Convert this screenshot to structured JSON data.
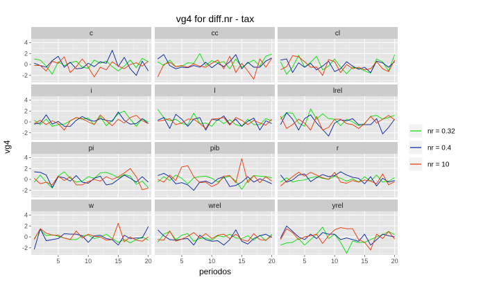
{
  "chart_data": {
    "type": "line",
    "title": "vg4 for diff.nr - tax",
    "xlabel": "periodos",
    "ylabel": "vg4",
    "xlim": [
      0.5,
      20.5
    ],
    "ylim": [
      -3.3,
      4.7
    ],
    "xticks": [
      5,
      10,
      15,
      20
    ],
    "yticks": [
      -2,
      0,
      2,
      4
    ],
    "series_names": [
      "nr = 0.32",
      "nr = 0.4",
      "nr = 10"
    ],
    "colors": {
      "nr = 0.32": "#00e000",
      "nr = 0.4": "#001f9f",
      "nr = 10": "#ee3300"
    },
    "x": [
      1,
      2,
      3,
      4,
      5,
      6,
      7,
      8,
      9,
      10,
      11,
      12,
      13,
      14,
      15,
      16,
      17,
      18,
      19,
      20
    ],
    "panels": [
      {
        "name": "c",
        "series": [
          {
            "name": "nr = 0.32",
            "values": [
              1.0,
              0.8,
              -0.3,
              -1.8,
              0.5,
              -0.2,
              0.3,
              0.6,
              -0.5,
              -0.7,
              0.8,
              0.2,
              0.6,
              -0.4,
              -1.2,
              -0.3,
              0.8,
              -0.6,
              1.1,
              0.5
            ]
          },
          {
            "name": "nr = 0.4",
            "values": [
              0.2,
              -0.2,
              -0.5,
              0.7,
              1.5,
              -0.5,
              0.4,
              -0.8,
              -0.7,
              0.2,
              -0.4,
              0.5,
              0.2,
              2.6,
              -0.4,
              1.3,
              -0.8,
              -2.0,
              0.6,
              -1.2
            ]
          },
          {
            "name": "nr = 10",
            "values": [
              -0.2,
              -0.2,
              -1.2,
              0.6,
              0.2,
              1.4,
              -1.5,
              -0.4,
              1.0,
              -0.5,
              -2.3,
              -0.5,
              -1.0,
              0.5,
              -0.3,
              -0.8,
              0.0,
              0.3,
              -0.3,
              0.6
            ]
          }
        ]
      },
      {
        "name": "cc",
        "series": [
          {
            "name": "nr = 0.32",
            "values": [
              0.5,
              -0.2,
              0.8,
              -0.4,
              -0.3,
              0.3,
              0.2,
              2.0,
              -0.2,
              0.7,
              0.3,
              0.5,
              -0.8,
              1.0,
              -0.5,
              0.2,
              0.8,
              -0.3,
              1.5,
              1.9
            ]
          },
          {
            "name": "nr = 0.4",
            "values": [
              1.0,
              1.8,
              -0.2,
              -0.8,
              -0.5,
              -0.6,
              -0.2,
              -0.5,
              0.4,
              -0.6,
              0.2,
              -0.4,
              0.5,
              1.8,
              -0.8,
              0.4,
              -0.5,
              -0.5,
              0.6,
              1.2
            ]
          },
          {
            "name": "nr = 10",
            "values": [
              -2.3,
              0.0,
              0.4,
              -0.4,
              -0.2,
              -0.5,
              0.1,
              -0.3,
              -0.5,
              0.2,
              0.8,
              -0.8,
              1.5,
              -1.5,
              0.2,
              -1.2,
              -2.7,
              1.0,
              -0.5,
              1.1
            ]
          }
        ]
      },
      {
        "name": "cl",
        "series": [
          {
            "name": "nr = 0.32",
            "values": [
              0.5,
              -1.8,
              -0.5,
              1.7,
              -0.5,
              0.4,
              1.5,
              -1.0,
              -0.3,
              1.0,
              -0.5,
              -1.7,
              -0.5,
              -0.7,
              -1.2,
              -1.6,
              1.0,
              0.5,
              -1.2,
              1.8
            ]
          },
          {
            "name": "nr = 0.4",
            "values": [
              0.8,
              1.0,
              -1.5,
              0.3,
              -0.5,
              0.2,
              -1.0,
              -0.3,
              0.6,
              -1.3,
              -0.8,
              0.5,
              -0.3,
              -0.9,
              -0.5,
              -1.5,
              0.6,
              0.3,
              -0.5,
              0.5
            ]
          },
          {
            "name": "nr = 10",
            "values": [
              -1.0,
              -0.4,
              1.6,
              1.4,
              0.5,
              -0.5,
              -0.5,
              -2.0,
              0.9,
              0.5,
              -1.5,
              0.0,
              -0.8,
              -0.5,
              -1.0,
              -0.8,
              0.5,
              -0.8,
              -1.3,
              0.8
            ]
          }
        ]
      },
      {
        "name": "i",
        "series": [
          {
            "name": "nr = 0.32",
            "values": [
              0.3,
              -0.5,
              0.5,
              -0.8,
              -0.5,
              -0.4,
              0.2,
              0.8,
              0.5,
              0.7,
              -0.5,
              1.0,
              -0.7,
              0.3,
              1.5,
              2.0,
              0.5,
              -0.8,
              0.6,
              0.0
            ]
          },
          {
            "name": "nr = 0.4",
            "values": [
              -0.4,
              -0.2,
              1.3,
              -0.4,
              0.1,
              -0.8,
              -0.8,
              0.3,
              1.0,
              0.4,
              0.1,
              0.6,
              0.3,
              0.1,
              1.8,
              0.3,
              -0.4,
              -0.3,
              0.6,
              -0.3
            ]
          },
          {
            "name": "nr = 10",
            "values": [
              -0.3,
              0.3,
              -0.5,
              0.2,
              -0.3,
              -1.5,
              0.2,
              0.8,
              0.6,
              0.0,
              -0.5,
              1.3,
              0.2,
              -0.7,
              0.5,
              -0.2,
              0.8,
              1.2,
              0.2,
              -0.3
            ]
          }
        ]
      },
      {
        "name": "l",
        "series": [
          {
            "name": "nr = 0.32",
            "values": [
              2.3,
              0.8,
              0.2,
              0.5,
              -0.3,
              -0.5,
              1.6,
              -0.3,
              -0.2,
              -0.8,
              0.5,
              -0.3,
              0.4,
              -0.5,
              -0.8,
              0.5,
              -0.5,
              -0.5,
              0.6,
              0.2
            ]
          },
          {
            "name": "nr = 0.4",
            "values": [
              0.3,
              0.8,
              -1.2,
              1.4,
              0.5,
              -0.8,
              0.5,
              0.8,
              -1.5,
              0.5,
              0.3,
              1.1,
              -0.4,
              0.5,
              -0.8,
              0.1,
              0.7,
              -1.5,
              0.2,
              -0.3
            ]
          },
          {
            "name": "nr = 10",
            "values": [
              0.1,
              0.3,
              0.6,
              -0.5,
              -0.2,
              0.5,
              0.5,
              -0.3,
              -1.2,
              0.5,
              0.6,
              0.8,
              -0.6,
              0.8,
              0.3,
              -0.5,
              0.3,
              -0.2,
              -0.6,
              0.5
            ]
          }
        ]
      },
      {
        "name": "lrel",
        "series": [
          {
            "name": "nr = 0.32",
            "values": [
              0.5,
              1.7,
              1.6,
              -0.2,
              -0.8,
              2.4,
              0.5,
              1.5,
              0.6,
              0.5,
              -0.7,
              0.5,
              0.0,
              -0.7,
              -0.3,
              1.0,
              1.2,
              0.5,
              0.8,
              1.2
            ]
          },
          {
            "name": "nr = 0.4",
            "values": [
              -0.5,
              1.7,
              0.5,
              -1.5,
              0.6,
              1.3,
              -0.2,
              -1.4,
              -2.6,
              -0.2,
              0.4,
              0.2,
              0.6,
              -0.5,
              -0.5,
              -0.5,
              0.6,
              -2.2,
              -1.0,
              0.5
            ]
          },
          {
            "name": "nr = 10",
            "values": [
              1.0,
              -1.2,
              -0.5,
              0.5,
              -0.2,
              -1.5,
              1.0,
              -1.5,
              -1.0,
              0.5,
              0.5,
              -0.3,
              -0.5,
              -1.2,
              -0.3,
              1.0,
              -0.2,
              0.5,
              1.2,
              0.4
            ]
          }
        ]
      },
      {
        "name": "pi",
        "series": [
          {
            "name": "nr = 0.32",
            "values": [
              -0.5,
              0.8,
              -0.5,
              -1.6,
              0.6,
              1.4,
              0.2,
              -0.5,
              -0.3,
              0.5,
              0.2,
              1.2,
              1.3,
              0.9,
              0.3,
              0.9,
              0.6,
              -0.9,
              -0.3,
              -1.5
            ]
          },
          {
            "name": "nr = 0.4",
            "values": [
              1.4,
              1.3,
              0.8,
              -1.5,
              0.5,
              0.3,
              -0.3,
              0.7,
              -0.5,
              -0.7,
              0.2,
              0.6,
              -1.0,
              -0.8,
              0.0,
              0.8,
              0.2,
              -0.5,
              0.5,
              -0.5
            ]
          },
          {
            "name": "nr = 10",
            "values": [
              0.2,
              -0.8,
              -0.5,
              -1.0,
              0.6,
              -0.2,
              0.5,
              -1.0,
              -1.0,
              -0.4,
              0.0,
              -0.3,
              0.5,
              0.0,
              0.5,
              1.2,
              2.0,
              0.5,
              -1.9,
              -1.6
            ]
          }
        ]
      },
      {
        "name": "pib",
        "series": [
          {
            "name": "nr = 0.32",
            "values": [
              -0.5,
              0.5,
              -0.2,
              0.8,
              0.2,
              -0.8,
              0.3,
              0.5,
              0.6,
              0.2,
              -0.5,
              0.3,
              0.6,
              -0.3,
              -1.8,
              -0.2,
              0.7,
              0.6,
              0.5,
              0.3
            ]
          },
          {
            "name": "nr = 0.4",
            "values": [
              0.7,
              1.1,
              0.5,
              -0.8,
              -0.6,
              -1.0,
              -2.0,
              -0.5,
              -0.3,
              -0.8,
              0.1,
              0.5,
              -1.3,
              -1.1,
              -0.5,
              0.5,
              -0.5,
              0.1,
              -0.3,
              -0.8
            ]
          },
          {
            "name": "nr = 10",
            "values": [
              0.0,
              -0.5,
              0.8,
              -0.2,
              2.3,
              2.5,
              0.5,
              -0.6,
              -0.5,
              -1.3,
              -0.8,
              0.6,
              0.7,
              -0.6,
              3.8,
              -0.6,
              0.7,
              -0.6,
              0.5,
              -0.3
            ]
          }
        ]
      },
      {
        "name": "r",
        "series": [
          {
            "name": "nr = 0.32",
            "values": [
              -0.5,
              0.3,
              -0.5,
              -0.2,
              -0.1,
              0.3,
              0.5,
              0.2,
              0.0,
              0.6,
              0.2,
              -0.3,
              0.1,
              -0.5,
              0.5,
              -0.3,
              0.8,
              -0.5,
              -0.3,
              0.3
            ]
          },
          {
            "name": "nr = 0.4",
            "values": [
              0.8,
              -0.5,
              -0.1,
              0.8,
              1.0,
              -0.4,
              0.3,
              0.9,
              0.5,
              0.7,
              1.4,
              0.8,
              0.4,
              0.2,
              -0.8,
              0.5,
              -1.2,
              0.2,
              -0.5,
              -0.2
            ]
          },
          {
            "name": "nr = 10",
            "values": [
              -1.2,
              -0.3,
              0.5,
              1.3,
              0.6,
              1.3,
              0.8,
              0.3,
              0.0,
              1.3,
              -0.5,
              -0.7,
              -0.2,
              -0.5,
              -0.1,
              -0.3,
              -0.8,
              1.0,
              -1.0,
              -0.4
            ]
          }
        ]
      },
      {
        "name": "w",
        "series": [
          {
            "name": "nr = 0.32",
            "values": [
              -0.3,
              1.3,
              0.2,
              0.4,
              0.1,
              -0.2,
              -0.5,
              -0.5,
              0.2,
              0.3,
              -0.3,
              0.0,
              0.5,
              -0.3,
              -1.0,
              -0.5,
              -1.1,
              -0.5,
              0.0,
              -0.6
            ]
          },
          {
            "name": "nr = 0.4",
            "values": [
              -2.3,
              1.5,
              -0.7,
              -0.5,
              -0.3,
              0.6,
              0.5,
              0.5,
              0.2,
              -1.0,
              0.2,
              0.3,
              -0.3,
              -0.5,
              -1.5,
              0.3,
              -0.3,
              -0.2,
              -0.2,
              1.9
            ]
          },
          {
            "name": "nr = 10",
            "values": [
              -0.5,
              1.5,
              0.7,
              0.3,
              0.3,
              -0.2,
              -0.5,
              1.1,
              -0.2,
              0.5,
              0.1,
              0.0,
              -0.6,
              -0.5,
              2.5,
              -0.9,
              0.0,
              -0.6,
              -0.8,
              0.0
            ]
          }
        ]
      },
      {
        "name": "wrel",
        "series": [
          {
            "name": "nr = 0.32",
            "values": [
              -1.0,
              0.5,
              1.0,
              -0.5,
              0.3,
              0.6,
              -0.8,
              -0.3,
              -0.2,
              -0.6,
              0.2,
              0.0,
              0.5,
              -0.2,
              -0.3,
              0.2,
              -0.6,
              0.3,
              -0.7,
              0.5
            ]
          },
          {
            "name": "nr = 0.4",
            "values": [
              1.3,
              0.2,
              -0.5,
              -0.6,
              -0.4,
              -0.3,
              -1.5,
              0.3,
              -0.5,
              -0.8,
              -0.7,
              -1.5,
              -0.5,
              1.3,
              -0.8,
              -1.3,
              -0.3,
              0.2,
              0.5,
              -0.1
            ]
          },
          {
            "name": "nr = 10",
            "values": [
              -0.5,
              -0.6,
              1.1,
              -0.8,
              -0.4,
              0.1,
              0.8,
              -0.2,
              0.6,
              -0.3,
              0.3,
              0.5,
              -0.3,
              0.5,
              -0.5,
              -0.8,
              0.6,
              -0.5,
              -0.6,
              0.2
            ]
          }
        ]
      },
      {
        "name": "yrel",
        "series": [
          {
            "name": "nr = 0.32",
            "values": [
              -1.5,
              -1.1,
              -1.0,
              -0.3,
              -1.5,
              -0.5,
              0.5,
              1.8,
              -0.3,
              0.5,
              -1.0,
              -3.0,
              -0.8,
              -1.0,
              -1.0,
              -0.5,
              0.0,
              0.4,
              1.0,
              0.4
            ]
          },
          {
            "name": "nr = 0.4",
            "values": [
              -0.2,
              2.0,
              1.0,
              0.0,
              -0.5,
              0.5,
              -0.3,
              0.8,
              0.5,
              0.5,
              -0.5,
              -0.2,
              -0.5,
              -0.8,
              0.5,
              -1.5,
              -0.5,
              0.5,
              0.2,
              0.0
            ]
          },
          {
            "name": "nr = 10",
            "values": [
              -0.5,
              1.5,
              0.8,
              -0.5,
              0.0,
              0.2,
              0.5,
              -1.2,
              0.2,
              1.3,
              1.7,
              1.5,
              1.5,
              -0.5,
              -1.0,
              -2.4,
              0.5,
              -0.3,
              1.0,
              -0.4
            ]
          }
        ]
      }
    ]
  }
}
